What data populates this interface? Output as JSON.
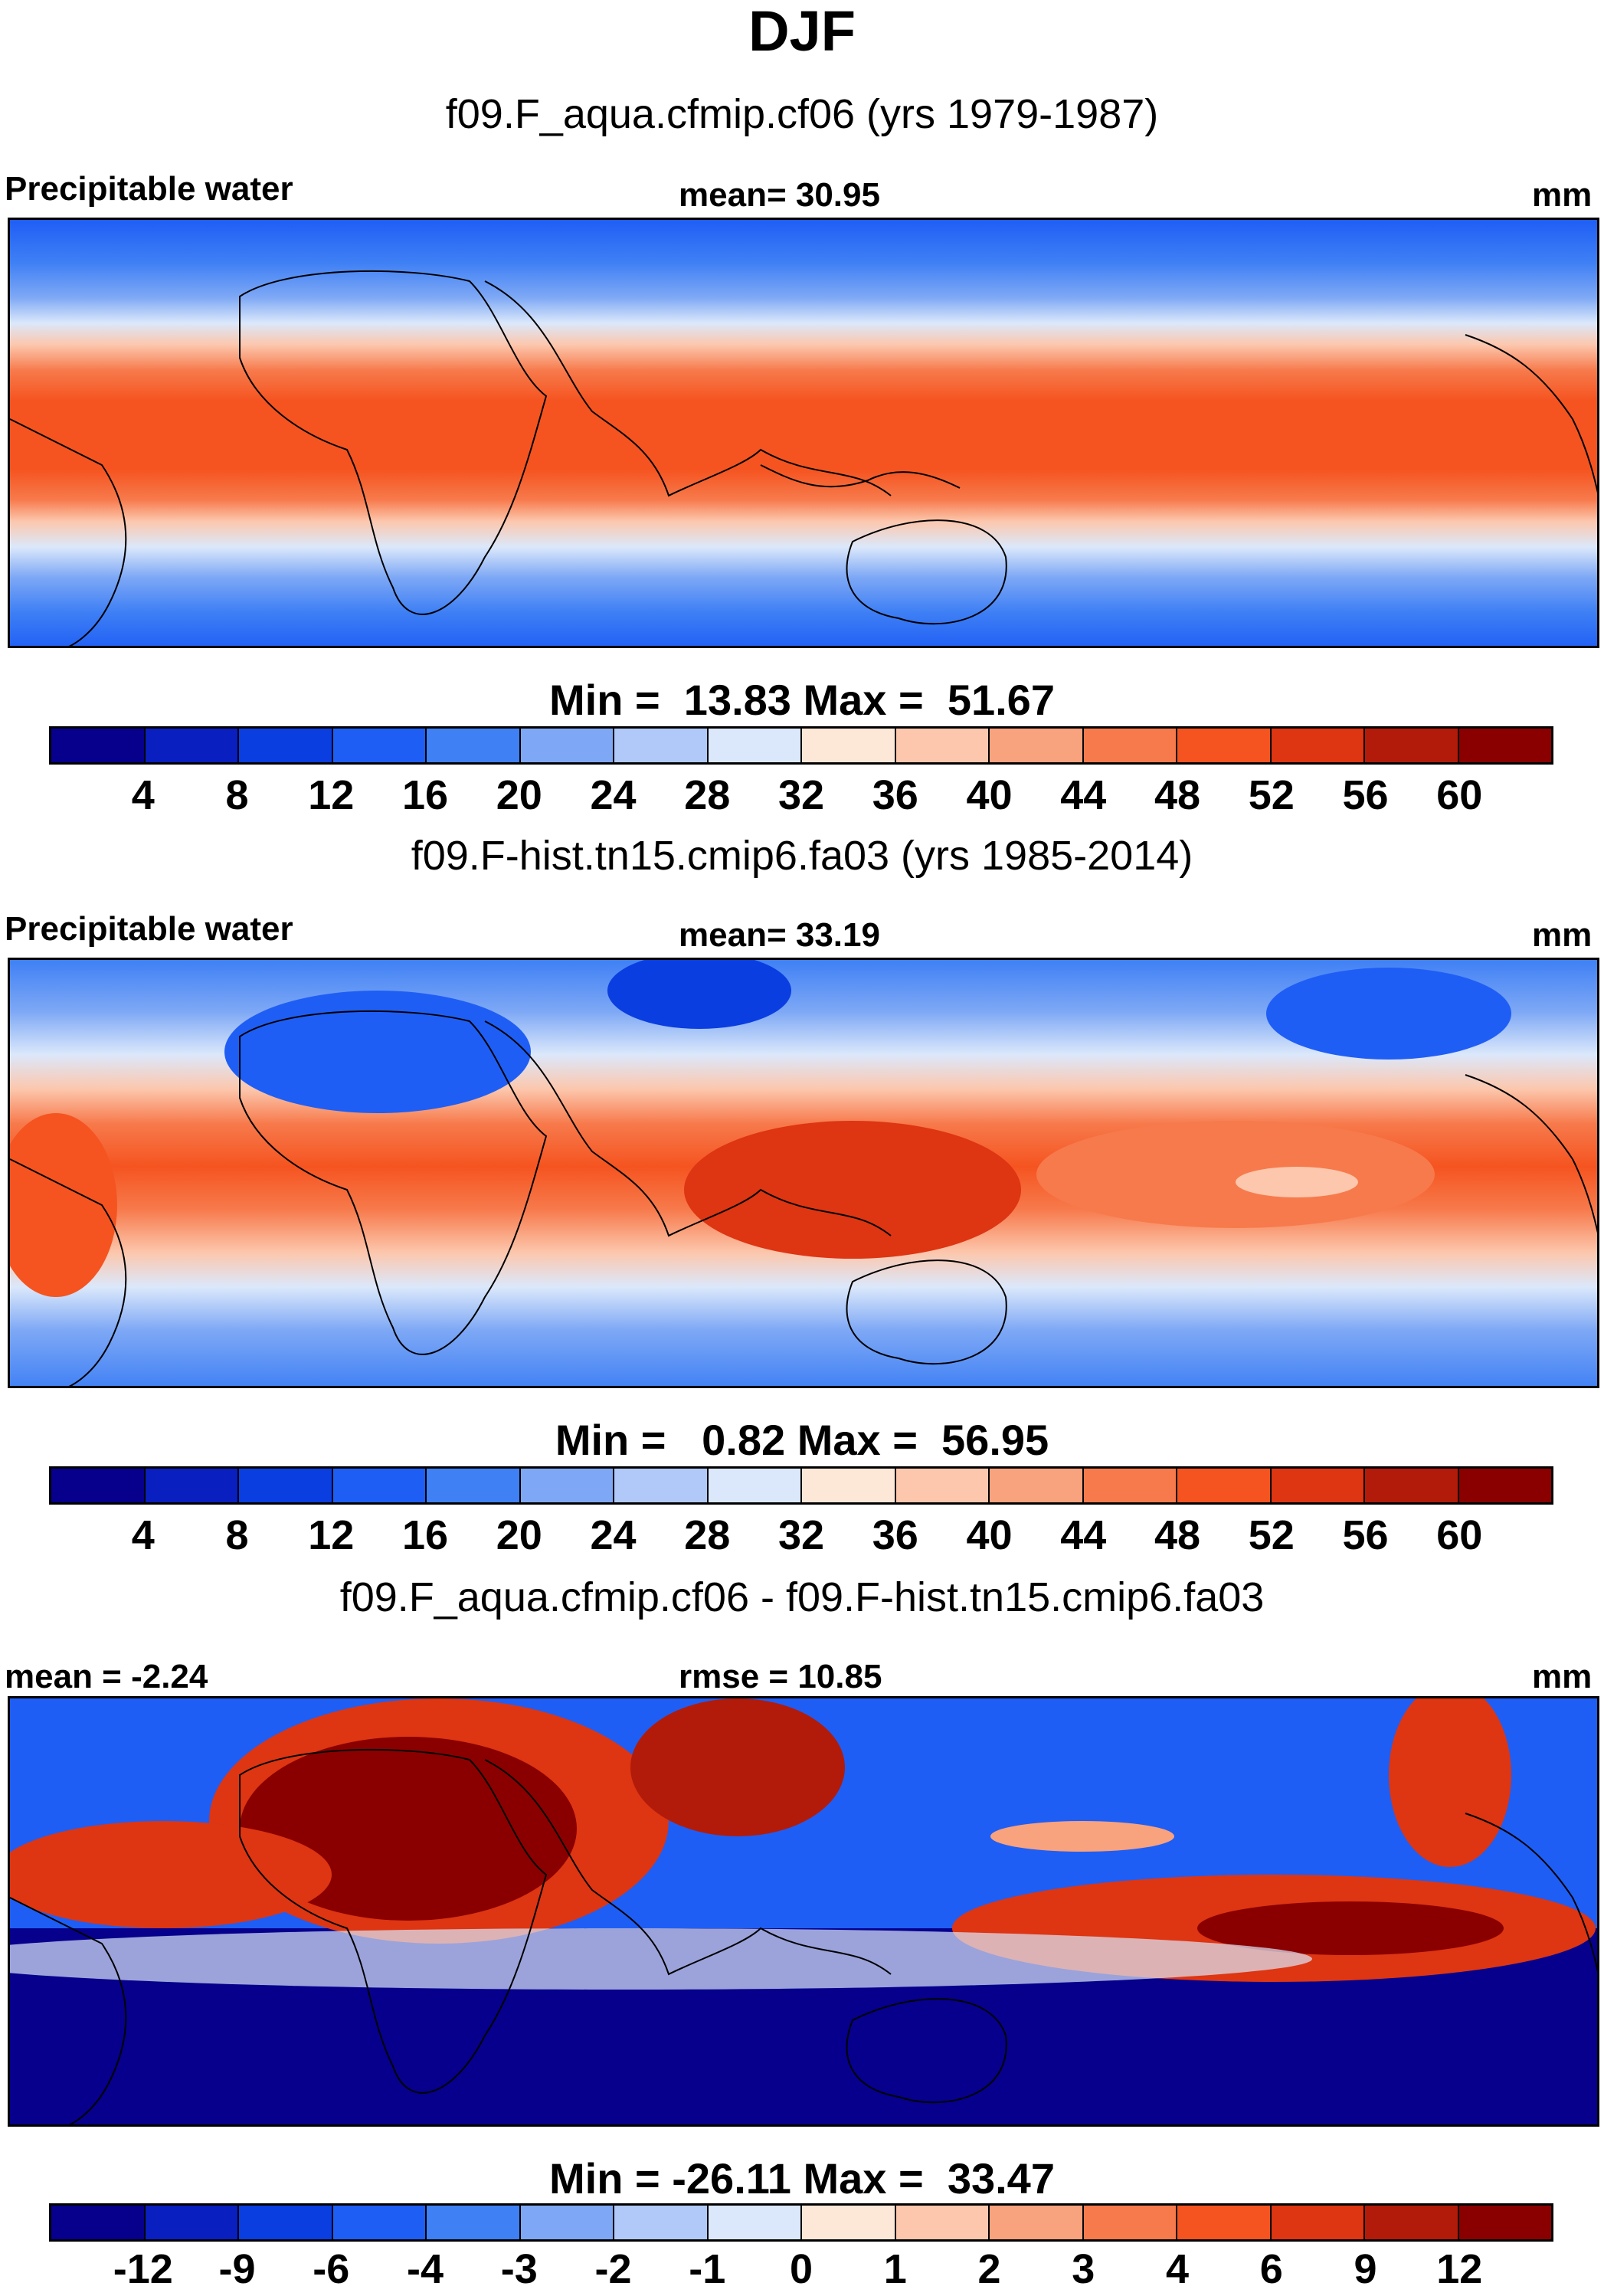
{
  "title": "DJF",
  "colors": {
    "scale": [
      "#06008c",
      "#0a1fbf",
      "#0a3ee0",
      "#1f5ef5",
      "#3f80f5",
      "#7ea8f5",
      "#b0c9f8",
      "#dbe8fb",
      "#fde8d8",
      "#fcc7ad",
      "#f9a27e",
      "#f77a4c",
      "#f55420",
      "#de3512",
      "#b21b0a",
      "#8a0000"
    ]
  },
  "panels": [
    {
      "id": "model",
      "subtitle": "f09.F_aqua.cfmip.cf06 (yrs 1979-1987)",
      "left_label": "Precipitable water",
      "center_label": "mean=  30.95",
      "right_label": "mm",
      "minmax": "Min =  13.83 Max =  51.67",
      "cbar_ticks": [
        "4",
        "8",
        "12",
        "16",
        "20",
        "24",
        "28",
        "32",
        "36",
        "40",
        "44",
        "48",
        "52",
        "56",
        "60"
      ]
    },
    {
      "id": "obs",
      "subtitle": "f09.F-hist.tn15.cmip6.fa03 (yrs 1985-2014)",
      "left_label": "Precipitable water",
      "center_label": "mean=  33.19",
      "right_label": "mm",
      "minmax": "Min =   0.82 Max =  56.95",
      "cbar_ticks": [
        "4",
        "8",
        "12",
        "16",
        "20",
        "24",
        "28",
        "32",
        "36",
        "40",
        "44",
        "48",
        "52",
        "56",
        "60"
      ]
    },
    {
      "id": "diff",
      "subtitle": "f09.F_aqua.cfmip.cf06 - f09.F-hist.tn15.cmip6.fa03",
      "left_label": "mean =  -2.24",
      "center_label": "rmse =  10.85",
      "right_label": "mm",
      "minmax": "Min = -26.11 Max =  33.47",
      "cbar_ticks": [
        "-12",
        "-9",
        "-6",
        "-4",
        "-3",
        "-2",
        "-1",
        "0",
        "1",
        "2",
        "3",
        "4",
        "6",
        "9",
        "12"
      ]
    }
  ]
}
